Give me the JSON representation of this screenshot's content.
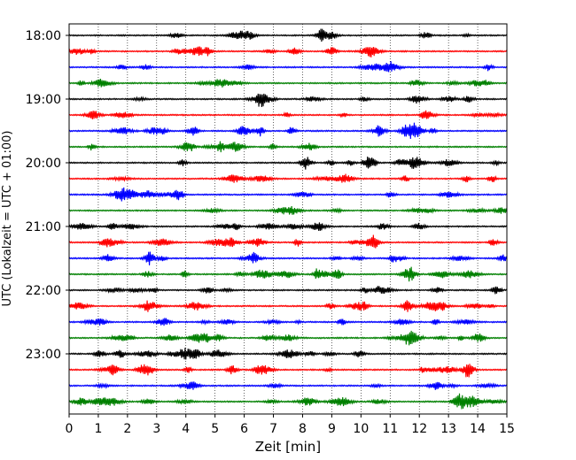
{
  "chart_data": {
    "type": "line",
    "title": "",
    "xlabel": "Zeit  [min]",
    "ylabel": "UTC (Lokalzeit = UTC + 01:00)",
    "xlim": [
      0,
      15
    ],
    "x_ticks": [
      0,
      1,
      2,
      3,
      4,
      5,
      6,
      7,
      8,
      9,
      10,
      11,
      12,
      13,
      14,
      15
    ],
    "x_tick_labels": [
      "0",
      "1",
      "2",
      "3",
      "4",
      "5",
      "6",
      "7",
      "8",
      "9",
      "10",
      "11",
      "12",
      "13",
      "14",
      "15"
    ],
    "y_ticks": [
      "18:00",
      "19:00",
      "20:00",
      "21:00",
      "22:00",
      "23:00"
    ],
    "grid": "vertical dotted lines at each minute",
    "trace_interval_minutes": 15,
    "trace_start": "18:00",
    "trace_end": "23:45",
    "trace_count": 24,
    "trace_color_cycle": [
      "#000000",
      "#ff0000",
      "#0000ff",
      "#008000"
    ],
    "trace_color_names": [
      "black",
      "red",
      "blue",
      "green"
    ]
  }
}
